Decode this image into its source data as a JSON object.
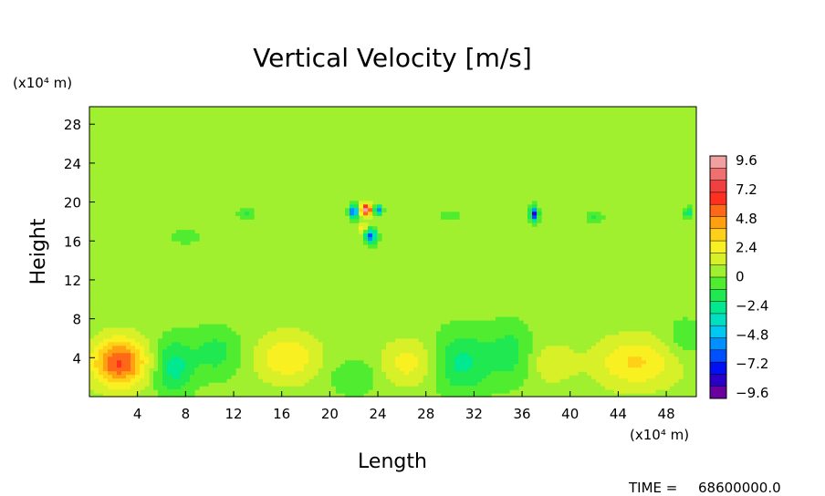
{
  "chart_data": {
    "type": "heatmap",
    "title": "Vertical Velocity [m/s]",
    "xlabel": "Length",
    "ylabel": "Height",
    "x_unit": "(x10⁴ m)",
    "y_unit": "(x10⁴ m)",
    "xlim": [
      0,
      50.5
    ],
    "ylim": [
      0,
      29.8
    ],
    "x_ticks": [
      4,
      8,
      12,
      16,
      20,
      24,
      28,
      32,
      36,
      40,
      44,
      48
    ],
    "y_ticks": [
      4,
      8,
      12,
      16,
      20,
      24,
      28
    ],
    "colorbar": {
      "labels": [
        "9.6",
        "7.2",
        "4.8",
        "2.4",
        "0",
        "−2.4",
        "−4.8",
        "−7.2",
        "−9.6"
      ],
      "min": -9.6,
      "max": 9.6,
      "colors": [
        "#6a00a0",
        "#2a00c8",
        "#0010f0",
        "#0050ff",
        "#0090ff",
        "#00c8f0",
        "#00e0c0",
        "#00e890",
        "#20e850",
        "#50ec30",
        "#a0f030",
        "#d8f028",
        "#f8f020",
        "#ffd018",
        "#ffa010",
        "#ff6818",
        "#ff3020",
        "#f04040",
        "#f07070",
        "#f0a0a0"
      ]
    },
    "background_value": 0.4,
    "features": [
      {
        "x": 2.5,
        "y": 3.5,
        "sx": 2.2,
        "sy": 2.4,
        "value": 5.5
      },
      {
        "x": 7.0,
        "y": 3.0,
        "sx": 1.6,
        "sy": 2.8,
        "value": -2.8
      },
      {
        "x": 10.5,
        "y": 4.5,
        "sx": 2.0,
        "sy": 2.5,
        "value": -1.8
      },
      {
        "x": 16.5,
        "y": 4.0,
        "sx": 2.6,
        "sy": 2.5,
        "value": 2.4
      },
      {
        "x": 22.0,
        "y": 2.0,
        "sx": 2.0,
        "sy": 1.8,
        "value": -1.3
      },
      {
        "x": 26.5,
        "y": 3.5,
        "sx": 2.2,
        "sy": 2.3,
        "value": 2.0
      },
      {
        "x": 31.0,
        "y": 3.5,
        "sx": 2.4,
        "sy": 3.2,
        "value": -2.6
      },
      {
        "x": 35.0,
        "y": 4.5,
        "sx": 1.8,
        "sy": 3.0,
        "value": -1.8
      },
      {
        "x": 38.5,
        "y": 3.5,
        "sx": 1.8,
        "sy": 2.0,
        "value": 1.4
      },
      {
        "x": 45.5,
        "y": 3.5,
        "sx": 3.4,
        "sy": 2.6,
        "value": 2.6
      },
      {
        "x": 49.5,
        "y": 6.0,
        "sx": 1.6,
        "sy": 2.0,
        "value": -1.2
      },
      {
        "x": 22.0,
        "y": 19.0,
        "sx": 0.35,
        "sy": 0.6,
        "value": -7.5
      },
      {
        "x": 23.0,
        "y": 19.2,
        "sx": 0.45,
        "sy": 0.55,
        "value": 8.4
      },
      {
        "x": 24.0,
        "y": 19.2,
        "sx": 0.3,
        "sy": 0.45,
        "value": -6.0
      },
      {
        "x": 23.4,
        "y": 16.5,
        "sx": 0.45,
        "sy": 0.7,
        "value": -6.5
      },
      {
        "x": 22.8,
        "y": 17.4,
        "sx": 0.35,
        "sy": 0.5,
        "value": 2.8
      },
      {
        "x": 37.0,
        "y": 18.8,
        "sx": 0.3,
        "sy": 0.65,
        "value": -8.5
      },
      {
        "x": 49.8,
        "y": 18.9,
        "sx": 0.3,
        "sy": 0.5,
        "value": -3.0
      },
      {
        "x": 13.0,
        "y": 18.8,
        "sx": 0.6,
        "sy": 0.5,
        "value": -1.4
      },
      {
        "x": 30.0,
        "y": 18.6,
        "sx": 0.7,
        "sy": 0.5,
        "value": -1.2
      },
      {
        "x": 42.0,
        "y": 18.5,
        "sx": 0.7,
        "sy": 0.6,
        "value": -1.4
      },
      {
        "x": 8.0,
        "y": 16.5,
        "sx": 1.2,
        "sy": 0.8,
        "value": -0.9
      }
    ],
    "time_label": "TIME =",
    "time_value": "68600000.0"
  }
}
